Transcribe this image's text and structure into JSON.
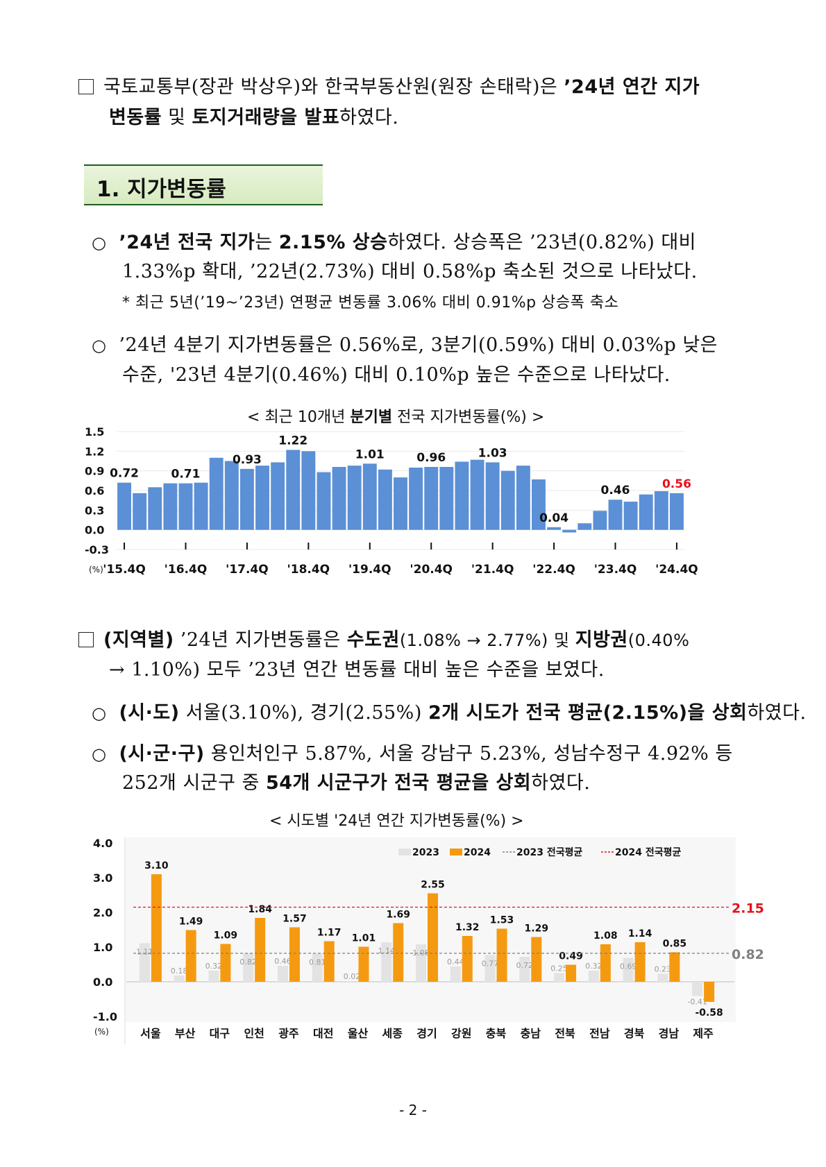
{
  "intro": {
    "line1_a": "국토교통부(장관  박상우)와  한국부동산원(원장  손태락)은  ",
    "line1_b": "’24년  연간  지가",
    "line2_a": "변동률",
    "line2_b": "  및  ",
    "line2_c": "토지거래량을  발표",
    "line2_d": "하였다."
  },
  "section_title": "1. 지가변동률",
  "bullet1": {
    "l1_a": "’24년  전국  지가",
    "l1_b": "는  ",
    "l1_c": "2.15%  상승",
    "l1_d": "하였다.  상승폭은  ’23년(0.82%)  대비",
    "l2": "1.33%p  확대,  ’22년(2.73%)  대비  0.58%p  축소된  것으로  나타났다.",
    "note": "*  최근  5년(’19~’23년)  연평균  변동률  3.06%  대비  0.91%p  상승폭  축소"
  },
  "bullet2": {
    "l1": "’24년  4분기  지가변동률은  0.56%로,  3분기(0.59%)  대비  0.03%p  낮은",
    "l2": "수준,  '23년  4분기(0.46%)  대비  0.10%p  높은  수준으로  나타났다."
  },
  "chart1_caption": {
    "a": "<  최근  10개년  ",
    "b": "분기별",
    "c": "  전국  지가변동률(%)  >"
  },
  "chart_data": [
    {
      "type": "bar",
      "title": "최근 10개년 분기별 전국 지가변동률(%)",
      "ylabel": "(%)",
      "ylim": [
        -0.3,
        1.5
      ],
      "yticks": [
        "1.5",
        "1.2",
        "0.9",
        "0.6",
        "0.3",
        "0.0",
        "-0.3"
      ],
      "xtick_labels": [
        "'15.4Q",
        "'16.4Q",
        "'17.4Q",
        "'18.4Q",
        "'19.4Q",
        "'20.4Q",
        "'21.4Q",
        "'22.4Q",
        "'23.4Q",
        "'24.4Q"
      ],
      "values": [
        0.72,
        0.56,
        0.65,
        0.71,
        0.71,
        0.72,
        1.1,
        1.05,
        0.93,
        0.98,
        1.03,
        1.22,
        1.2,
        0.88,
        0.96,
        0.98,
        1.01,
        0.92,
        0.8,
        0.95,
        0.96,
        0.96,
        1.04,
        1.07,
        1.03,
        0.9,
        0.98,
        0.77,
        0.04,
        -0.04,
        0.1,
        0.29,
        0.46,
        0.43,
        0.54,
        0.59,
        0.56
      ],
      "labels": {
        "0": "0.72",
        "4": "0.71",
        "8": "0.93",
        "11": "1.22",
        "16": "1.01",
        "20": "0.96",
        "24": "1.03",
        "28": "0.04",
        "32": "0.46",
        "36": "0.56"
      },
      "colors": {
        "bar": "#5b8fd6",
        "highlight_label": "#e8101a"
      }
    },
    {
      "type": "bar",
      "title": "시도별 '24년 연간 지가변동률(%)",
      "ylabel": "(%)",
      "ylim": [
        -1.0,
        4.0
      ],
      "yticks": [
        "4.0",
        "3.0",
        "2.0",
        "1.0",
        "0.0",
        "-1.0"
      ],
      "categories": [
        "서울",
        "부산",
        "대구",
        "인천",
        "광주",
        "대전",
        "울산",
        "세종",
        "경기",
        "강원",
        "충북",
        "충남",
        "전북",
        "전남",
        "경북",
        "경남",
        "제주"
      ],
      "series": [
        {
          "name": "2023",
          "values": [
            1.11,
            0.18,
            0.32,
            0.82,
            0.46,
            0.81,
            0.02,
            1.14,
            1.08,
            0.44,
            0.77,
            0.72,
            0.25,
            0.32,
            0.69,
            0.23,
            -0.41
          ],
          "labels": [
            "1.11",
            "0.18",
            "0.32",
            "0.82",
            "0.46",
            "0.81",
            "0.02",
            "1.14",
            "1.08",
            "0.44",
            "0.77",
            "0.72",
            "0.25",
            "0.32",
            "0.69",
            "0.23",
            "-0.41"
          ]
        },
        {
          "name": "2024",
          "values": [
            3.1,
            1.49,
            1.09,
            1.84,
            1.57,
            1.17,
            1.01,
            1.69,
            2.55,
            1.32,
            1.53,
            1.29,
            0.49,
            1.08,
            1.14,
            0.85,
            -0.58
          ],
          "labels": [
            "3.10",
            "1.49",
            "1.09",
            "1.84",
            "1.57",
            "1.17",
            "1.01",
            "1.69",
            "2.55",
            "1.32",
            "1.53",
            "1.29",
            "0.49",
            "1.08",
            "1.14",
            "0.85",
            "-0.58"
          ]
        }
      ],
      "reference_lines": [
        {
          "name": "2023 전국평균",
          "value": 0.82,
          "label": "0.82"
        },
        {
          "name": "2024 전국평균",
          "value": 2.15,
          "label": "2.15"
        }
      ],
      "legend": [
        "2023",
        "2024",
        "2023 전국평균",
        "2024 전국평균"
      ],
      "colors": {
        "2023": "#e3e3e3",
        "2024": "#f59a10",
        "avg2023": "#808080",
        "avg2024": "#e8101a"
      }
    }
  ],
  "region": {
    "l1_a": "(지역별)",
    "l1_b": "  ’24년  지가변동률은  ",
    "l1_c": "수도권",
    "l1_d": "(1.08%  →  2.77%)  및  ",
    "l1_e": "지방권",
    "l1_f": "(0.40%",
    "l2": "→  1.10%)  모두  ’23년  연간  변동률  대비  높은  수준을  보였다."
  },
  "sido": {
    "a": "(시·도)",
    "b": "  서울(3.10%),  경기(2.55%)  ",
    "c": "2개  시도가  전국  평균(2.15%)을  상회",
    "d": "하였다."
  },
  "sigungu": {
    "a": "(시·군·구)",
    "b": "  용인처인구  5.87%,  서울  강남구  5.23%,  성남수정구  4.92%  등",
    "l2_a": "252개  시군구  중  ",
    "l2_b": "54개  시군구가  전국  평균을  상회",
    "l2_c": "하였다."
  },
  "chart2_caption": "<  시도별  '24년  연간  지가변동률(%)  >",
  "page_number": "-  2  -"
}
